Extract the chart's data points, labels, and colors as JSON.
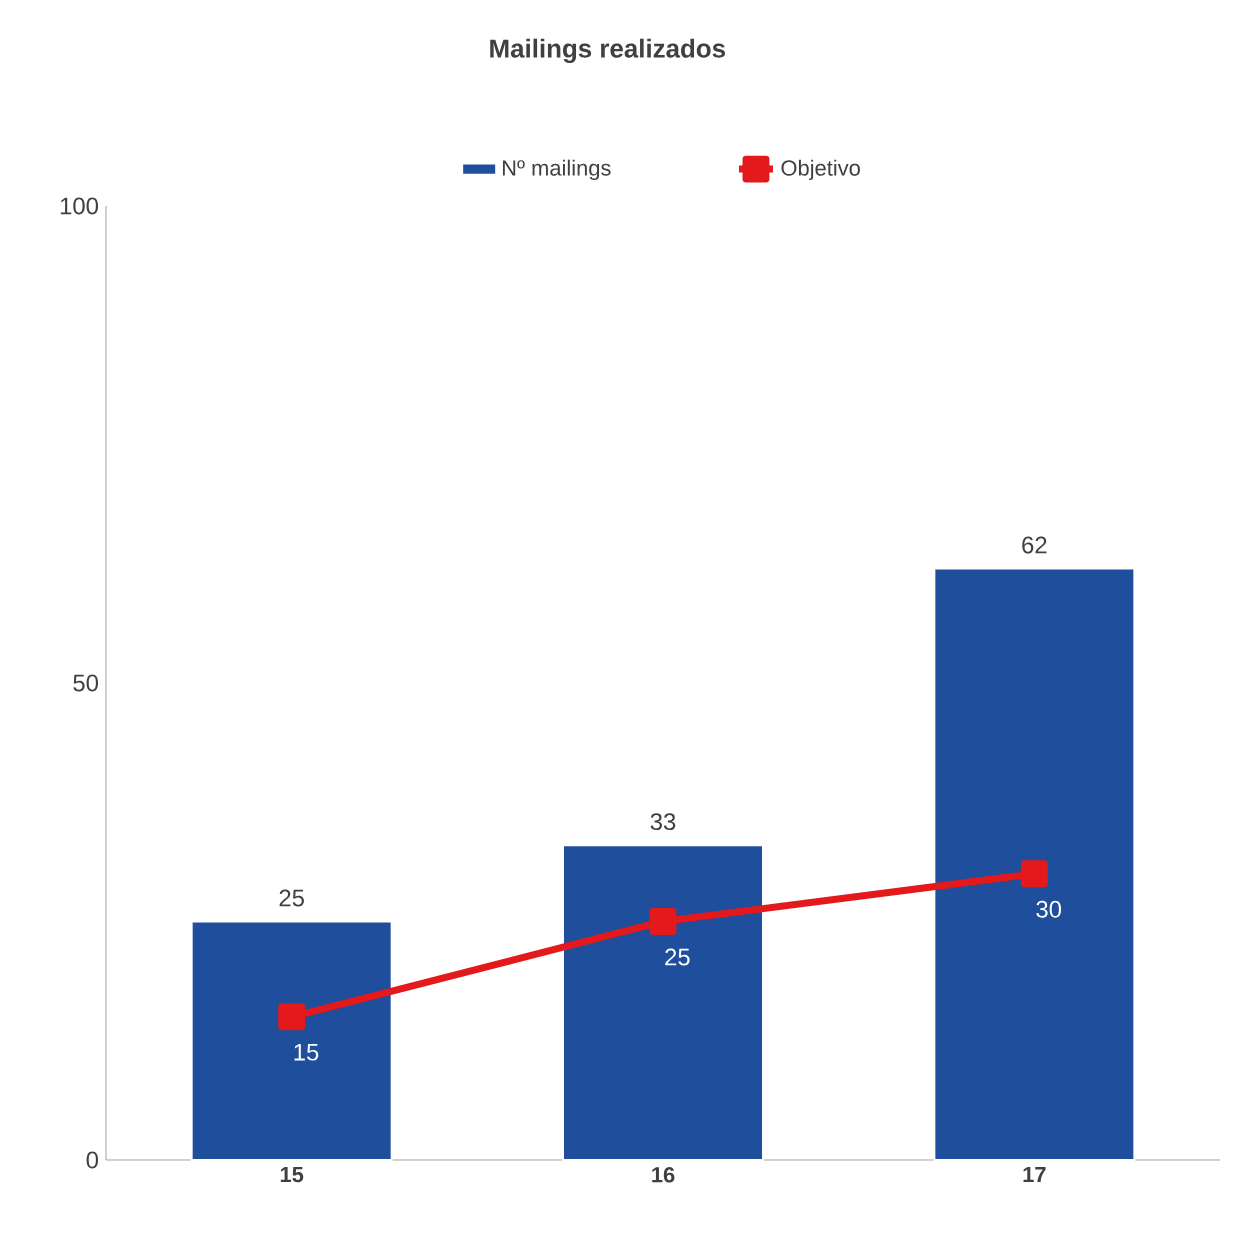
{
  "chart_data": {
    "type": "bar",
    "title": "Mailings realizados",
    "categories": [
      "15",
      "16",
      "17"
    ],
    "series": [
      {
        "name": "Nº mailings",
        "color": "#1f4e9c",
        "values": [
          25,
          33,
          62
        ]
      },
      {
        "name": "Objetivo",
        "type": "line",
        "color": "#e3191c",
        "values": [
          15,
          25,
          30
        ]
      }
    ],
    "ylim": [
      0,
      100
    ],
    "yticks": [
      0,
      50,
      100
    ],
    "data_labels": true,
    "legend": "top",
    "marker": "square"
  }
}
